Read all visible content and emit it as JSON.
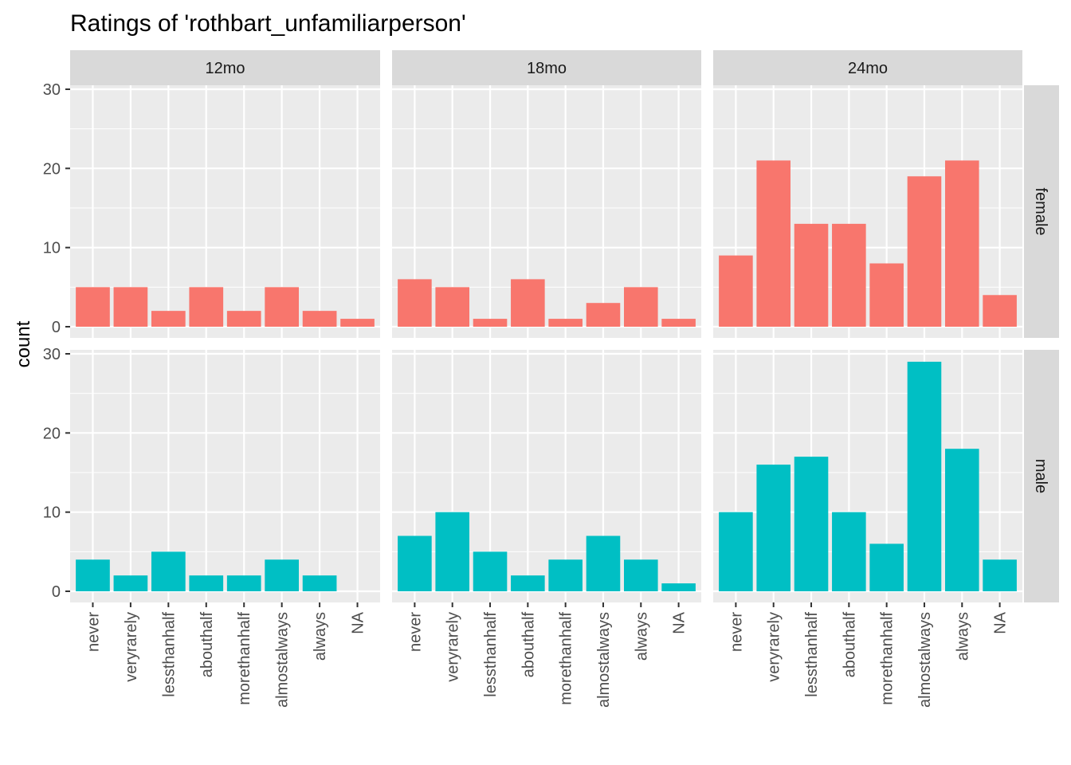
{
  "chart_data": {
    "type": "bar",
    "title": "Ratings of 'rothbart_unfamiliarperson'",
    "xlabel": "",
    "ylabel": "count",
    "ylim": [
      0,
      30
    ],
    "yticks": [
      "0",
      "10",
      "20",
      "30"
    ],
    "categories": [
      "never",
      "veryrarely",
      "lessthanhalf",
      "abouthalf",
      "morethanhalf",
      "almostalways",
      "always",
      "NA"
    ],
    "columns": [
      "12mo",
      "18mo",
      "24mo"
    ],
    "rows": [
      "female",
      "male"
    ],
    "grid": true,
    "legend": "none",
    "series_colors": {
      "female": "#F8766D",
      "male": "#00BFC4"
    },
    "panels": [
      {
        "column": "12mo",
        "row": "female",
        "values": [
          5,
          5,
          2,
          5,
          2,
          5,
          2,
          1
        ]
      },
      {
        "column": "18mo",
        "row": "female",
        "values": [
          6,
          5,
          1,
          6,
          1,
          3,
          5,
          1
        ]
      },
      {
        "column": "24mo",
        "row": "female",
        "values": [
          9,
          21,
          13,
          13,
          8,
          19,
          21,
          4
        ]
      },
      {
        "column": "12mo",
        "row": "male",
        "values": [
          4,
          2,
          5,
          2,
          2,
          4,
          2,
          0
        ]
      },
      {
        "column": "18mo",
        "row": "male",
        "values": [
          7,
          10,
          5,
          2,
          4,
          7,
          4,
          1
        ]
      },
      {
        "column": "24mo",
        "row": "male",
        "values": [
          10,
          16,
          17,
          10,
          6,
          29,
          18,
          4
        ]
      }
    ]
  },
  "theme": {
    "panel_background": "#EBEBEB",
    "strip_background": "#D9D9D9",
    "grid_color": "#FFFFFF",
    "tick_color": "#333333"
  }
}
